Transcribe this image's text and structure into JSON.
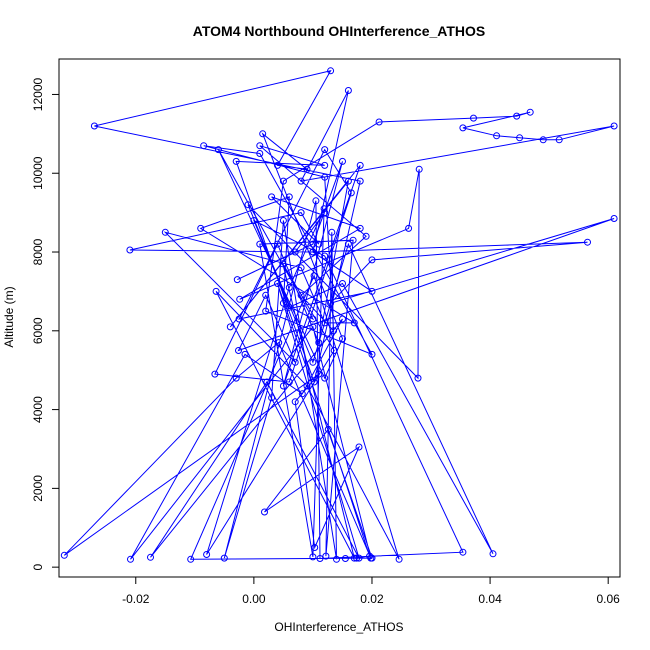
{
  "chart_data": {
    "type": "line",
    "title": "ATOM4 Northbound OHInterference_ATHOS",
    "xlabel": "OHInterference_ATHOS",
    "ylabel": "Altitude (m)",
    "xlim": [
      -0.033,
      0.062
    ],
    "ylim": [
      -250,
      12900
    ],
    "xticks": [
      -0.02,
      0.0,
      0.02,
      0.04,
      0.06
    ],
    "xtick_labels": [
      "-0.02",
      "0.00",
      "0.02",
      "0.04",
      "0.06"
    ],
    "yticks": [
      0,
      2000,
      4000,
      6000,
      8000,
      10000,
      12000
    ],
    "ytick_labels": [
      "0",
      "2000",
      "4000",
      "6000",
      "8000",
      "10000",
      "12000"
    ],
    "grid": false,
    "legend": "none",
    "series_color": "#0000ff",
    "x": [
      0.0155,
      0.0174,
      0.0196,
      0.0126,
      0.0018,
      0.0178,
      0.0103,
      0.007,
      0.011,
      -0.0321,
      -0.003,
      0.0042,
      0.0198,
      0.01,
      -0.0209,
      -0.0015,
      0.0082,
      0.015,
      -0.0175,
      0.0022,
      0.0178,
      0.004,
      0.02,
      -0.0107,
      0.0102,
      0.0246,
      0.009,
      -0.0064,
      0.017,
      0.0049,
      0.0136,
      -0.008,
      0.006,
      0.0119,
      0.01,
      0.001,
      0.0168,
      0.0122,
      0.0132,
      0.014,
      0.005,
      0.003,
      -0.005,
      0.0105,
      0.0112,
      0.0354,
      0.012,
      0.0,
      0.006,
      0.015,
      0.0405,
      0.016,
      0.01,
      -0.001,
      0.0278,
      0.028,
      0.0262,
      -0.0024,
      0.018,
      0.003,
      0.011,
      0.008,
      -0.021,
      0.01,
      0.0565,
      0.02,
      0.013,
      0.061,
      -0.0026,
      0.002,
      0.007,
      -0.015,
      0.008,
      0.012,
      0.017,
      -0.009,
      0.006,
      0.005,
      0.01,
      -0.006,
      0.012,
      0.015,
      0.0015,
      0.009,
      0.004,
      0.013,
      -0.027,
      0.018,
      0.0102,
      -0.003,
      0.012,
      0.001,
      0.019,
      0.008,
      0.0135,
      0.012,
      -0.0085,
      0.001,
      0.02,
      0.002,
      0.005,
      0.0212,
      0.0372,
      0.0445,
      0.0468,
      0.0354,
      0.0411,
      0.045,
      0.049,
      0.0517,
      0.061,
      0.008,
      0.016,
      0.01,
      0.02,
      -0.0025,
      0.012,
      0.0165,
      0.006,
      -0.0066,
      0.004,
      0.011,
      0.016,
      -0.004,
      0.018,
      0.005,
      0.015,
      0.01,
      -0.0028,
      0.007,
      0.012
    ],
    "y": [
      220,
      230,
      280,
      3500,
      1400,
      3050,
      500,
      4200,
      4900,
      300,
      4800,
      5700,
      230,
      6100,
      200,
      5400,
      4400,
      6300,
      250,
      4700,
      230,
      7200,
      230,
      200,
      7400,
      200,
      4600,
      7000,
      230,
      7700,
      5500,
      320,
      7100,
      9100,
      260,
      8200,
      8300,
      280,
      8500,
      200,
      8800,
      4300,
      230,
      9300,
      220,
      380,
      7900,
      8800,
      6600,
      7200,
      340,
      8200,
      5200,
      9200,
      4800,
      10100,
      8600,
      6800,
      8600,
      9400,
      8200,
      9000,
      8050,
      8000,
      8250,
      7800,
      6700,
      8850,
      5500,
      6900,
      5200,
      8500,
      7600,
      6200,
      6200,
      8600,
      9400,
      6700,
      6300,
      10600,
      4800,
      5800,
      11000,
      10100,
      10200,
      12600,
      11200,
      9800,
      4700,
      10300,
      10200,
      10700,
      8400,
      6900,
      6000,
      9900,
      10700,
      10500,
      5400,
      6500,
      9800,
      11300,
      11400,
      11450,
      11550,
      11150,
      10950,
      10900,
      10850,
      10850,
      11200,
      9800,
      12100,
      8000,
      7000,
      6300,
      10600,
      9500,
      4700,
      4900,
      8200,
      5700,
      9800,
      6100,
      10200,
      4600,
      10300,
      8200,
      7300,
      8000,
      9000
    ]
  }
}
